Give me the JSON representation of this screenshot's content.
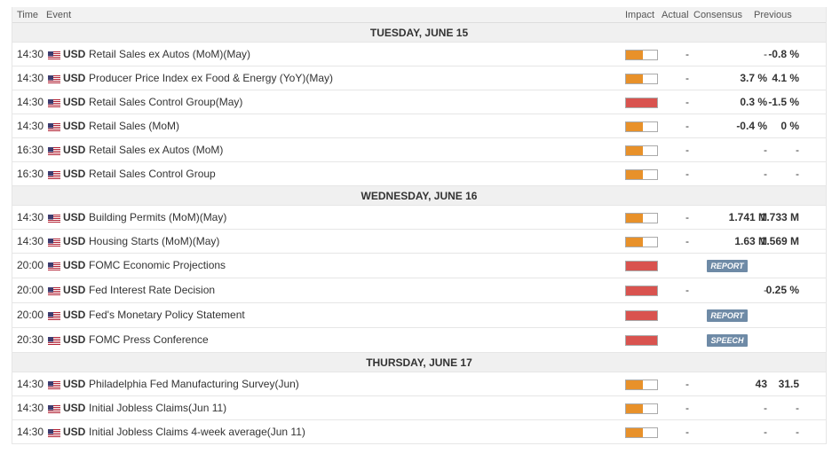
{
  "header": {
    "time": "Time",
    "event": "Event",
    "impact": "Impact",
    "actual": "Actual",
    "consensus": "Consensus",
    "previous": "Previous"
  },
  "colors": {
    "medium": "#e8912a",
    "high": "#d9534f"
  },
  "days": [
    {
      "label": "TUESDAY, JUNE 15",
      "events": [
        {
          "time": "14:30",
          "currency": "USD",
          "name": "Retail Sales ex Autos (MoM)(May)",
          "impact": "medium",
          "actual": "-",
          "consensus": "-",
          "previous": "-0.8 %"
        },
        {
          "time": "14:30",
          "currency": "USD",
          "name": "Producer Price Index ex Food & Energy (YoY)(May)",
          "impact": "medium",
          "actual": "-",
          "consensus": "3.7 %",
          "previous": "4.1 %"
        },
        {
          "time": "14:30",
          "currency": "USD",
          "name": "Retail Sales Control Group(May)",
          "impact": "high",
          "actual": "-",
          "consensus": "0.3 %",
          "previous": "-1.5 %"
        },
        {
          "time": "14:30",
          "currency": "USD",
          "name": "Retail Sales (MoM)",
          "impact": "medium",
          "actual": "-",
          "consensus": "-0.4 %",
          "previous": "0 %"
        },
        {
          "time": "16:30",
          "currency": "USD",
          "name": "Retail Sales ex Autos (MoM)",
          "impact": "medium",
          "actual": "-",
          "consensus": "-",
          "previous": "-"
        },
        {
          "time": "16:30",
          "currency": "USD",
          "name": "Retail Sales Control Group",
          "impact": "medium",
          "actual": "-",
          "consensus": "-",
          "previous": "-"
        }
      ]
    },
    {
      "label": "WEDNESDAY, JUNE 16",
      "events": [
        {
          "time": "14:30",
          "currency": "USD",
          "name": "Building Permits (MoM)(May)",
          "impact": "medium",
          "actual": "-",
          "consensus": "1.741 M",
          "previous": "1.733 M",
          "info": true
        },
        {
          "time": "14:30",
          "currency": "USD",
          "name": "Housing Starts (MoM)(May)",
          "impact": "medium",
          "actual": "-",
          "consensus": "1.63 M",
          "previous": "1.569 M"
        },
        {
          "time": "20:00",
          "currency": "USD",
          "name": "FOMC Economic Projections",
          "impact": "high",
          "badge": "REPORT"
        },
        {
          "time": "20:00",
          "currency": "USD",
          "name": "Fed Interest Rate Decision",
          "impact": "high",
          "actual": "-",
          "consensus": "-",
          "previous": "0.25 %"
        },
        {
          "time": "20:00",
          "currency": "USD",
          "name": "Fed's Monetary Policy Statement",
          "impact": "high",
          "badge": "REPORT"
        },
        {
          "time": "20:30",
          "currency": "USD",
          "name": "FOMC Press Conference",
          "impact": "high",
          "badge": "SPEECH"
        }
      ]
    },
    {
      "label": "THURSDAY, JUNE 17",
      "events": [
        {
          "time": "14:30",
          "currency": "USD",
          "name": "Philadelphia Fed Manufacturing Survey(Jun)",
          "impact": "medium",
          "actual": "-",
          "consensus": "43",
          "previous": "31.5"
        },
        {
          "time": "14:30",
          "currency": "USD",
          "name": "Initial Jobless Claims(Jun 11)",
          "impact": "medium",
          "actual": "-",
          "consensus": "-",
          "previous": "-"
        },
        {
          "time": "14:30",
          "currency": "USD",
          "name": "Initial Jobless Claims 4-week average(Jun 11)",
          "impact": "medium",
          "actual": "-",
          "consensus": "-",
          "previous": "-"
        }
      ]
    }
  ]
}
